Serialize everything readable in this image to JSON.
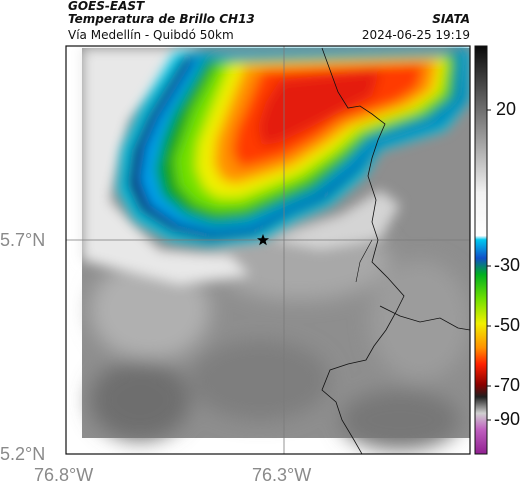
{
  "header": {
    "satellite": "GOES-EAST",
    "product": "Temperatura de Brillo CH13",
    "location": "Vía Medellín - Quibdó 50km",
    "brand": "SIATA",
    "datetime": "2024-06-25 19:19"
  },
  "map": {
    "lat_labels": [
      "5.7°N",
      "5.2°N"
    ],
    "lon_labels": [
      "76.8°W",
      "76.3°W"
    ],
    "colorbar_labels": [
      "20",
      "-30",
      "-50",
      "-70",
      "-90"
    ]
  },
  "colors": {
    "cold_core": "#e41a0f",
    "warm_ground": "#8f8f8f",
    "cyan": "#00c8e8",
    "navy": "#0a1a6e"
  }
}
